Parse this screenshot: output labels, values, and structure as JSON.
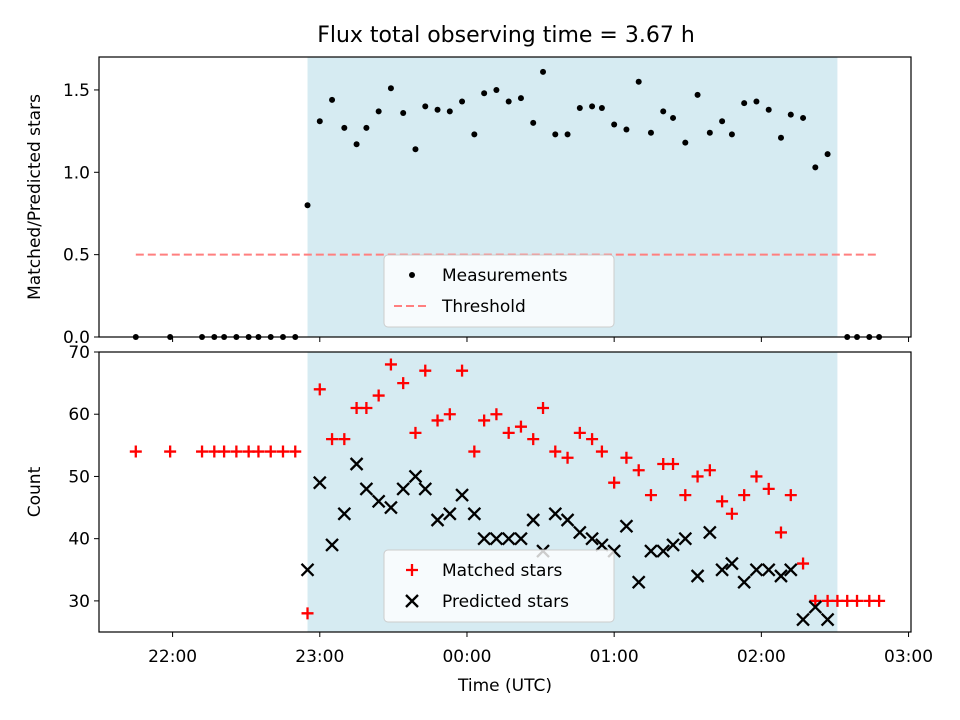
{
  "title": "Flux total observing time = 3.67 h",
  "chart_data": [
    {
      "type": "scatter",
      "title": "Flux total observing time = 3.67 h",
      "xlabel": "",
      "ylabel": "Matched/Predicted stars",
      "xlim": [
        "21:30",
        "03:01"
      ],
      "ylim": [
        0,
        1.7
      ],
      "yticks": [
        0.0,
        0.5,
        1.0,
        1.5
      ],
      "ytick_labels": [
        "0.0",
        "0.5",
        "1.0",
        "1.5"
      ],
      "grid": false,
      "legend_position": "lower-center",
      "observing_window": [
        "22:55",
        "02:31"
      ],
      "threshold": {
        "name": "Threshold",
        "value": 0.5,
        "x_range": [
          "21:45",
          "02:47"
        ],
        "color": "#ff7f7f"
      },
      "series": [
        {
          "name": "Measurements",
          "color": "#000000",
          "marker": "dot",
          "points": [
            [
              "21:45",
              0
            ],
            [
              "21:59",
              0
            ],
            [
              "22:12",
              0
            ],
            [
              "22:17",
              0
            ],
            [
              "22:21",
              0
            ],
            [
              "22:26",
              0
            ],
            [
              "22:31",
              0
            ],
            [
              "22:35",
              0
            ],
            [
              "22:40",
              0
            ],
            [
              "22:45",
              0
            ],
            [
              "22:50",
              0
            ],
            [
              "22:55",
              0.8
            ],
            [
              "23:00",
              1.31
            ],
            [
              "23:05",
              1.44
            ],
            [
              "23:10",
              1.27
            ],
            [
              "23:15",
              1.17
            ],
            [
              "23:19",
              1.27
            ],
            [
              "23:24",
              1.37
            ],
            [
              "23:29",
              1.51
            ],
            [
              "23:34",
              1.36
            ],
            [
              "23:39",
              1.14
            ],
            [
              "23:43",
              1.4
            ],
            [
              "23:48",
              1.38
            ],
            [
              "23:53",
              1.37
            ],
            [
              "23:58",
              1.43
            ],
            [
              "00:03",
              1.23
            ],
            [
              "00:07",
              1.48
            ],
            [
              "00:12",
              1.5
            ],
            [
              "00:17",
              1.43
            ],
            [
              "00:22",
              1.45
            ],
            [
              "00:27",
              1.3
            ],
            [
              "00:31",
              1.61
            ],
            [
              "00:36",
              1.23
            ],
            [
              "00:41",
              1.23
            ],
            [
              "00:46",
              1.39
            ],
            [
              "00:51",
              1.4
            ],
            [
              "00:55",
              1.39
            ],
            [
              "01:00",
              1.29
            ],
            [
              "01:05",
              1.26
            ],
            [
              "01:10",
              1.55
            ],
            [
              "01:15",
              1.24
            ],
            [
              "01:20",
              1.37
            ],
            [
              "01:24",
              1.33
            ],
            [
              "01:29",
              1.18
            ],
            [
              "01:34",
              1.47
            ],
            [
              "01:39",
              1.24
            ],
            [
              "01:44",
              1.31
            ],
            [
              "01:48",
              1.23
            ],
            [
              "01:53",
              1.42
            ],
            [
              "01:58",
              1.43
            ],
            [
              "02:03",
              1.38
            ],
            [
              "02:08",
              1.21
            ],
            [
              "02:12",
              1.35
            ],
            [
              "02:17",
              1.33
            ],
            [
              "02:22",
              1.03
            ],
            [
              "02:27",
              1.11
            ],
            [
              "02:35",
              0
            ],
            [
              "02:39",
              0
            ],
            [
              "02:44",
              0
            ],
            [
              "02:48",
              0
            ]
          ]
        }
      ]
    },
    {
      "type": "scatter",
      "title": "",
      "xlabel": "Time (UTC)",
      "ylabel": "Count",
      "xlim": [
        "21:30",
        "03:01"
      ],
      "ylim": [
        25,
        70
      ],
      "yticks": [
        30,
        40,
        50,
        60,
        70
      ],
      "ytick_labels": [
        "30",
        "40",
        "50",
        "60",
        "70"
      ],
      "xticks": [
        "22:00",
        "23:00",
        "00:00",
        "01:00",
        "02:00",
        "03:00"
      ],
      "grid": false,
      "legend_position": "lower-center",
      "observing_window": [
        "22:55",
        "02:31"
      ],
      "series": [
        {
          "name": "Matched stars",
          "color": "#ff0000",
          "marker": "plus",
          "points": [
            [
              "21:45",
              54
            ],
            [
              "21:59",
              54
            ],
            [
              "22:12",
              54
            ],
            [
              "22:17",
              54
            ],
            [
              "22:21",
              54
            ],
            [
              "22:26",
              54
            ],
            [
              "22:31",
              54
            ],
            [
              "22:35",
              54
            ],
            [
              "22:40",
              54
            ],
            [
              "22:45",
              54
            ],
            [
              "22:50",
              54
            ],
            [
              "22:55",
              28
            ],
            [
              "23:00",
              64
            ],
            [
              "23:05",
              56
            ],
            [
              "23:10",
              56
            ],
            [
              "23:15",
              61
            ],
            [
              "23:19",
              61
            ],
            [
              "23:24",
              63
            ],
            [
              "23:29",
              68
            ],
            [
              "23:34",
              65
            ],
            [
              "23:39",
              57
            ],
            [
              "23:43",
              67
            ],
            [
              "23:48",
              59
            ],
            [
              "23:53",
              60
            ],
            [
              "23:58",
              67
            ],
            [
              "00:03",
              54
            ],
            [
              "00:07",
              59
            ],
            [
              "00:12",
              60
            ],
            [
              "00:17",
              57
            ],
            [
              "00:22",
              58
            ],
            [
              "00:27",
              56
            ],
            [
              "00:31",
              61
            ],
            [
              "00:36",
              54
            ],
            [
              "00:41",
              53
            ],
            [
              "00:46",
              57
            ],
            [
              "00:51",
              56
            ],
            [
              "00:55",
              54
            ],
            [
              "01:00",
              49
            ],
            [
              "01:05",
              53
            ],
            [
              "01:10",
              51
            ],
            [
              "01:15",
              47
            ],
            [
              "01:20",
              52
            ],
            [
              "01:24",
              52
            ],
            [
              "01:29",
              47
            ],
            [
              "01:34",
              50
            ],
            [
              "01:39",
              51
            ],
            [
              "01:44",
              46
            ],
            [
              "01:48",
              44
            ],
            [
              "01:53",
              47
            ],
            [
              "01:58",
              50
            ],
            [
              "02:03",
              48
            ],
            [
              "02:08",
              41
            ],
            [
              "02:12",
              47
            ],
            [
              "02:17",
              36
            ],
            [
              "02:22",
              30
            ],
            [
              "02:27",
              30
            ],
            [
              "02:31",
              30
            ],
            [
              "02:35",
              30
            ],
            [
              "02:39",
              30
            ],
            [
              "02:44",
              30
            ],
            [
              "02:48",
              30
            ]
          ]
        },
        {
          "name": "Predicted stars",
          "color": "#000000",
          "marker": "x",
          "points": [
            [
              "22:55",
              35
            ],
            [
              "23:00",
              49
            ],
            [
              "23:05",
              39
            ],
            [
              "23:10",
              44
            ],
            [
              "23:15",
              52
            ],
            [
              "23:19",
              48
            ],
            [
              "23:24",
              46
            ],
            [
              "23:29",
              45
            ],
            [
              "23:34",
              48
            ],
            [
              "23:39",
              50
            ],
            [
              "23:43",
              48
            ],
            [
              "23:48",
              43
            ],
            [
              "23:53",
              44
            ],
            [
              "23:58",
              47
            ],
            [
              "00:03",
              44
            ],
            [
              "00:07",
              40
            ],
            [
              "00:12",
              40
            ],
            [
              "00:17",
              40
            ],
            [
              "00:22",
              40
            ],
            [
              "00:27",
              43
            ],
            [
              "00:31",
              38
            ],
            [
              "00:36",
              44
            ],
            [
              "00:41",
              43
            ],
            [
              "00:46",
              41
            ],
            [
              "00:51",
              40
            ],
            [
              "00:55",
              39
            ],
            [
              "01:00",
              38
            ],
            [
              "01:05",
              42
            ],
            [
              "01:10",
              33
            ],
            [
              "01:15",
              38
            ],
            [
              "01:20",
              38
            ],
            [
              "01:24",
              39
            ],
            [
              "01:29",
              40
            ],
            [
              "01:34",
              34
            ],
            [
              "01:39",
              41
            ],
            [
              "01:44",
              35
            ],
            [
              "01:48",
              36
            ],
            [
              "01:53",
              33
            ],
            [
              "01:58",
              35
            ],
            [
              "02:03",
              35
            ],
            [
              "02:08",
              34
            ],
            [
              "02:12",
              35
            ],
            [
              "02:17",
              27
            ],
            [
              "02:22",
              29
            ],
            [
              "02:27",
              27
            ]
          ]
        }
      ]
    }
  ]
}
